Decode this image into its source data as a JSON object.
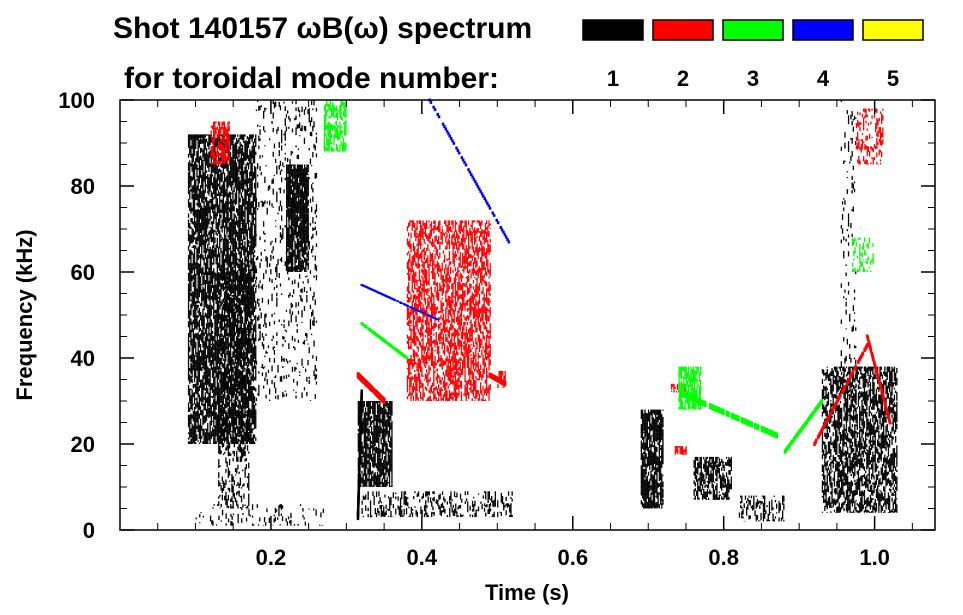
{
  "chart_data": {
    "type": "heatmap",
    "title_line1": "Shot 140157 ωB(ω) spectrum",
    "title_line2": "for toroidal mode number:",
    "xlabel": "Time (s)",
    "ylabel": "Frequency (kHz)",
    "xlim": [
      0.0,
      1.08
    ],
    "ylim": [
      0,
      100
    ],
    "x_ticks": [
      0.2,
      0.4,
      0.6,
      0.8,
      1.0
    ],
    "x_tick_labels": [
      "0.2",
      "0.4",
      "0.6",
      "0.8",
      "1.0"
    ],
    "y_ticks": [
      0,
      20,
      40,
      60,
      80,
      100
    ],
    "y_tick_labels": [
      "0",
      "20",
      "40",
      "60",
      "80",
      "100"
    ],
    "legend": [
      {
        "label": "1",
        "color": "#000000"
      },
      {
        "label": "2",
        "color": "#ff0000"
      },
      {
        "label": "3",
        "color": "#00ff00"
      },
      {
        "label": "4",
        "color": "#0000ff"
      },
      {
        "label": "5",
        "color": "#ffff00"
      }
    ],
    "regions": [
      {
        "mode": 1,
        "t": [
          0.09,
          0.18
        ],
        "f": [
          20,
          92
        ],
        "density": 0.75
      },
      {
        "mode": 1,
        "t": [
          0.13,
          0.17
        ],
        "f": [
          5,
          60
        ],
        "density": 0.35
      },
      {
        "mode": 1,
        "t": [
          0.18,
          0.26
        ],
        "f": [
          30,
          100
        ],
        "density": 0.12
      },
      {
        "mode": 1,
        "t": [
          0.22,
          0.25
        ],
        "f": [
          60,
          85
        ],
        "density": 0.85
      },
      {
        "mode": 1,
        "t": [
          0.1,
          0.27
        ],
        "f": [
          1,
          6
        ],
        "density": 0.12
      },
      {
        "mode": 1,
        "t": [
          0.315,
          0.36
        ],
        "f": [
          10,
          30
        ],
        "density": 0.8
      },
      {
        "mode": 1,
        "t": [
          0.32,
          0.52
        ],
        "f": [
          3,
          9
        ],
        "density": 0.28
      },
      {
        "mode": 1,
        "t": [
          0.69,
          0.72
        ],
        "f": [
          5,
          28
        ],
        "density": 0.8
      },
      {
        "mode": 1,
        "t": [
          0.76,
          0.81
        ],
        "f": [
          7,
          17
        ],
        "density": 0.6
      },
      {
        "mode": 1,
        "t": [
          0.82,
          0.88
        ],
        "f": [
          2,
          8
        ],
        "density": 0.35
      },
      {
        "mode": 1,
        "t": [
          0.93,
          1.03
        ],
        "f": [
          4,
          38
        ],
        "density": 0.6
      },
      {
        "mode": 1,
        "t": [
          0.955,
          0.975
        ],
        "f": [
          30,
          100
        ],
        "density": 0.08
      },
      {
        "mode": 2,
        "t": [
          0.12,
          0.145
        ],
        "f": [
          85,
          95
        ],
        "density": 0.6
      },
      {
        "mode": 2,
        "t": [
          0.38,
          0.49
        ],
        "f": [
          30,
          72
        ],
        "density": 0.55
      },
      {
        "mode": 2,
        "t": [
          0.975,
          1.01
        ],
        "f": [
          85,
          98
        ],
        "density": 0.35
      },
      {
        "mode": 2,
        "t": [
          0.5,
          0.51
        ],
        "f": [
          33,
          37
        ],
        "density": 0.7
      },
      {
        "mode": 2,
        "t": [
          0.735,
          0.75
        ],
        "f": [
          17.5,
          19.5
        ],
        "density": 0.7
      },
      {
        "mode": 2,
        "t": [
          0.73,
          0.75
        ],
        "f": [
          32,
          34
        ],
        "density": 0.5
      },
      {
        "mode": 3,
        "t": [
          0.27,
          0.3
        ],
        "f": [
          88,
          100
        ],
        "density": 0.55
      },
      {
        "mode": 3,
        "t": [
          0.74,
          0.77
        ],
        "f": [
          28,
          38
        ],
        "density": 0.7
      },
      {
        "mode": 3,
        "t": [
          0.97,
          1.0
        ],
        "f": [
          60,
          68
        ],
        "density": 0.3
      }
    ],
    "tracks": [
      {
        "mode": 1,
        "t": [
          0.315,
          0.32
        ],
        "f": [
          3,
          32
        ],
        "width": 6
      },
      {
        "mode": 2,
        "t": [
          0.315,
          0.35
        ],
        "f": [
          36,
          30
        ],
        "width": 6
      },
      {
        "mode": 2,
        "t": [
          0.49,
          0.51
        ],
        "f": [
          36,
          34
        ],
        "width": 5
      },
      {
        "mode": 3,
        "t": [
          0.32,
          0.38
        ],
        "f": [
          48,
          40
        ],
        "width": 3
      },
      {
        "mode": 3,
        "t": [
          0.74,
          0.87
        ],
        "f": [
          32,
          22
        ],
        "width": 6
      },
      {
        "mode": 3,
        "t": [
          0.88,
          0.93
        ],
        "f": [
          18,
          30
        ],
        "width": 4
      },
      {
        "mode": 2,
        "t": [
          0.92,
          0.99
        ],
        "f": [
          20,
          43
        ],
        "width": 4
      },
      {
        "mode": 2,
        "t": [
          0.99,
          1.02
        ],
        "f": [
          45,
          25
        ],
        "width": 4
      },
      {
        "mode": 4,
        "t": [
          0.41,
          0.515
        ],
        "f": [
          100,
          67
        ],
        "width": 3
      },
      {
        "mode": 4,
        "t": [
          0.32,
          0.42
        ],
        "f": [
          57,
          49
        ],
        "width": 2
      }
    ]
  }
}
